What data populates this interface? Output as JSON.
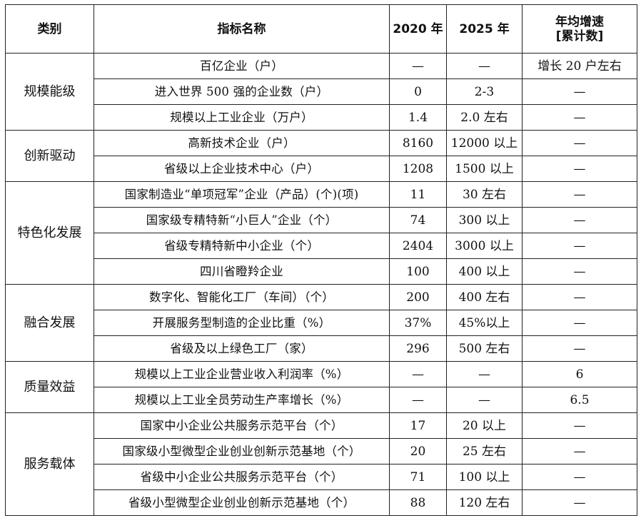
{
  "headers": {
    "category": "类别",
    "indicator": "指标名称",
    "y2020": "2020 年",
    "y2025": "2025 年",
    "growth_line1": "年均增速",
    "growth_line2": "[累计数]"
  },
  "groups": [
    {
      "category": "规模能级",
      "rows": [
        {
          "name": "百亿企业（户）",
          "y2020": "—",
          "y2025": "—",
          "growth": "增长 20 户左右"
        },
        {
          "name": "进入世界 500 强的企业数（户）",
          "y2020": "0",
          "y2025": "2-3",
          "growth": "—"
        },
        {
          "name": "规模以上工业企业（万户）",
          "y2020": "1.4",
          "y2025": "2.0 左右",
          "growth": "—"
        }
      ]
    },
    {
      "category": "创新驱动",
      "rows": [
        {
          "name": "高新技术企业（户）",
          "y2020": "8160",
          "y2025": "12000 以上",
          "growth": "—"
        },
        {
          "name": "省级以上企业技术中心（户）",
          "y2020": "1208",
          "y2025": "1500 以上",
          "growth": "—"
        }
      ]
    },
    {
      "category": "特色化发展",
      "rows": [
        {
          "name": "国家制造业“单项冠军”企业（产品）(个)(项)",
          "y2020": "11",
          "y2025": "30 左右",
          "growth": "—"
        },
        {
          "name": "国家级专精特新“小巨人”企业（个）",
          "y2020": "74",
          "y2025": "300 以上",
          "growth": "—"
        },
        {
          "name": "省级专精特新中小企业（个）",
          "y2020": "2404",
          "y2025": "3000 以上",
          "growth": "—"
        },
        {
          "name": "四川省瞪羚企业",
          "y2020": "100",
          "y2025": "400 以上",
          "growth": "—"
        }
      ]
    },
    {
      "category": "融合发展",
      "rows": [
        {
          "name": "数字化、智能化工厂（车间）（个）",
          "y2020": "200",
          "y2025": "400 左右",
          "growth": "—"
        },
        {
          "name": "开展服务型制造的企业比重（%）",
          "y2020": "37%",
          "y2025": "45%以上",
          "growth": "—"
        },
        {
          "name": "省级及以上绿色工厂（家）",
          "y2020": "296",
          "y2025": "500 左右",
          "growth": "—"
        }
      ]
    },
    {
      "category": "质量效益",
      "rows": [
        {
          "name": "规模以上工业企业营业收入利润率（%）",
          "y2020": "—",
          "y2025": "—",
          "growth": "6"
        },
        {
          "name": "规模以上工业全员劳动生产率增长（%）",
          "y2020": "—",
          "y2025": "—",
          "growth": "6.5"
        }
      ]
    },
    {
      "category": "服务载体",
      "rows": [
        {
          "name": "国家中小企业公共服务示范平台（个）",
          "y2020": "17",
          "y2025": "20 以上",
          "growth": "—"
        },
        {
          "name": "国家级小型微型企业创业创新示范基地（个）",
          "y2020": "20",
          "y2025": "25 左右",
          "growth": "—"
        },
        {
          "name": "省级中小企业公共服务示范平台（个）",
          "y2020": "71",
          "y2025": "100 以上",
          "growth": "—"
        },
        {
          "name": "省级小型微型企业创业创新示范基地（个）",
          "y2020": "88",
          "y2025": "120 左右",
          "growth": "—"
        }
      ]
    }
  ]
}
